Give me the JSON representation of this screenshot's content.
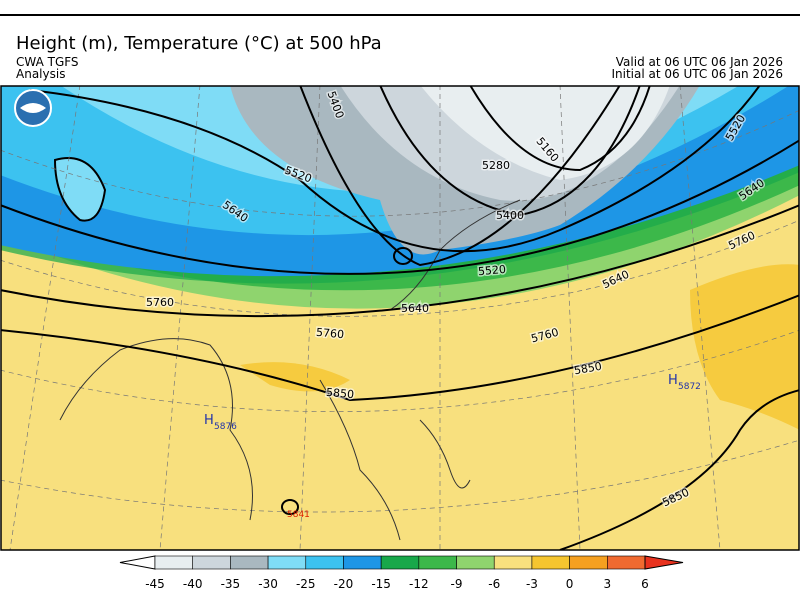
{
  "header": {
    "title": "Height (m), Temperature (°C) at 500 hPa",
    "source": "CWA TGFS",
    "product": "Analysis",
    "valid": "Valid at 06 UTC 06 Jan 2026",
    "initial": "Initial at 06 UTC 06 Jan 2026"
  },
  "map": {
    "contour_labels": [
      "5400",
      "5520",
      "5640",
      "5760",
      "5760",
      "5640",
      "5520",
      "5400",
      "5280",
      "5160",
      "5520",
      "5640",
      "5760",
      "5640",
      "5760",
      "5850",
      "5850",
      "5850"
    ],
    "highs": [
      {
        "symbol": "H",
        "value": "5876"
      },
      {
        "symbol": "H",
        "value": "5872"
      }
    ],
    "lows": [
      {
        "value": "5841"
      }
    ]
  },
  "colorbar": {
    "ticks": [
      -45,
      -40,
      -35,
      -30,
      -25,
      -20,
      -15,
      -12,
      -9,
      -6,
      -3,
      0,
      3,
      6
    ],
    "colors": [
      "#ffffff",
      "#e8eef0",
      "#cdd6dc",
      "#a9b8c0",
      "#7fdcf6",
      "#3cc2f0",
      "#1e96e6",
      "#18a84a",
      "#3cb84a",
      "#8fd46e",
      "#f8e07e",
      "#f5c52f",
      "#f5a020",
      "#f06a30",
      "#e8321e"
    ]
  }
}
